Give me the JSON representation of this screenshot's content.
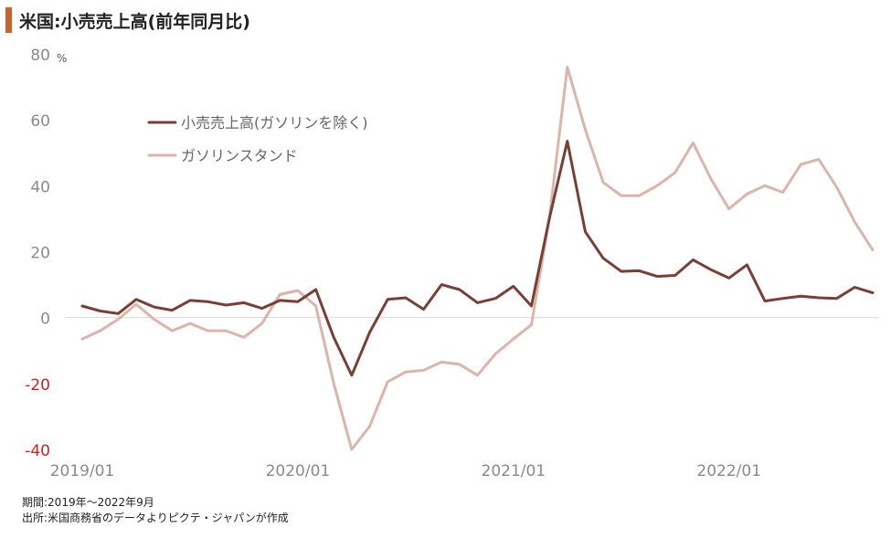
{
  "title": "米国:小売売上高(前年同月比)",
  "colors": {
    "accent": "#c8622f",
    "retail_ex_gas": "#7a3f34",
    "gas_stations": "#dbb5a9",
    "negative_tick": "#cc1f1f",
    "tick_text": "#8a8a8a",
    "zero_line": "#d9d9d9"
  },
  "footnotes": {
    "period": "期間:2019年～2022年9月",
    "source": "出所:米国商務省のデータよりピクテ・ジャパンが作成"
  },
  "chart_data": {
    "type": "line",
    "title": "米国:小売売上高(前年同月比)",
    "xlabel": "",
    "ylabel": "",
    "y_unit": "%",
    "ylim": [
      -40,
      80
    ],
    "yticks": [
      -40,
      -20,
      0,
      20,
      40,
      60,
      80
    ],
    "grid": false,
    "legend_position": "upper-left",
    "x_tick_labels": [
      "2019/01",
      "2020/01",
      "2021/01",
      "2022/01"
    ],
    "x": [
      "2019/01",
      "2019/02",
      "2019/03",
      "2019/04",
      "2019/05",
      "2019/06",
      "2019/07",
      "2019/08",
      "2019/09",
      "2019/10",
      "2019/11",
      "2019/12",
      "2020/01",
      "2020/02",
      "2020/03",
      "2020/04",
      "2020/05",
      "2020/06",
      "2020/07",
      "2020/08",
      "2020/09",
      "2020/10",
      "2020/11",
      "2020/12",
      "2021/01",
      "2021/02",
      "2021/03",
      "2021/04",
      "2021/05",
      "2021/06",
      "2021/07",
      "2021/08",
      "2021/09",
      "2021/10",
      "2021/11",
      "2021/12",
      "2022/01",
      "2022/02",
      "2022/03",
      "2022/04",
      "2022/05",
      "2022/06",
      "2022/07",
      "2022/08",
      "2022/09"
    ],
    "series": [
      {
        "name": "小売売上高(ガソリンを除く)",
        "values": [
          3.5,
          2,
          1.2,
          5.5,
          3.2,
          2.2,
          5.2,
          4.8,
          3.8,
          4.5,
          2.8,
          5.2,
          4.8,
          8.5,
          -6,
          -17.5,
          -4.5,
          5.5,
          6,
          2.5,
          10,
          8.5,
          4.5,
          5.8,
          9.5,
          3.5,
          30,
          53.5,
          26,
          18,
          14,
          14.2,
          12.5,
          12.8,
          17.5,
          14.5,
          12,
          16,
          5,
          5.8,
          6.5,
          6,
          5.8,
          9.2,
          7.5
        ]
      },
      {
        "name": "ガソリンスタンド",
        "values": [
          -6.5,
          -4,
          -0.5,
          4,
          -0.5,
          -4,
          -1.8,
          -4,
          -4,
          -6,
          -1.8,
          7,
          8.2,
          3.5,
          -20,
          -40,
          -33,
          -19.5,
          -16.5,
          -16,
          -13.5,
          -14.2,
          -17.5,
          -11,
          -6.5,
          -2.2,
          30,
          76,
          57,
          41,
          37,
          37,
          40,
          44,
          53,
          42,
          33,
          37.5,
          40,
          38,
          46.5,
          48,
          39.5,
          29,
          20.5
        ]
      }
    ]
  }
}
